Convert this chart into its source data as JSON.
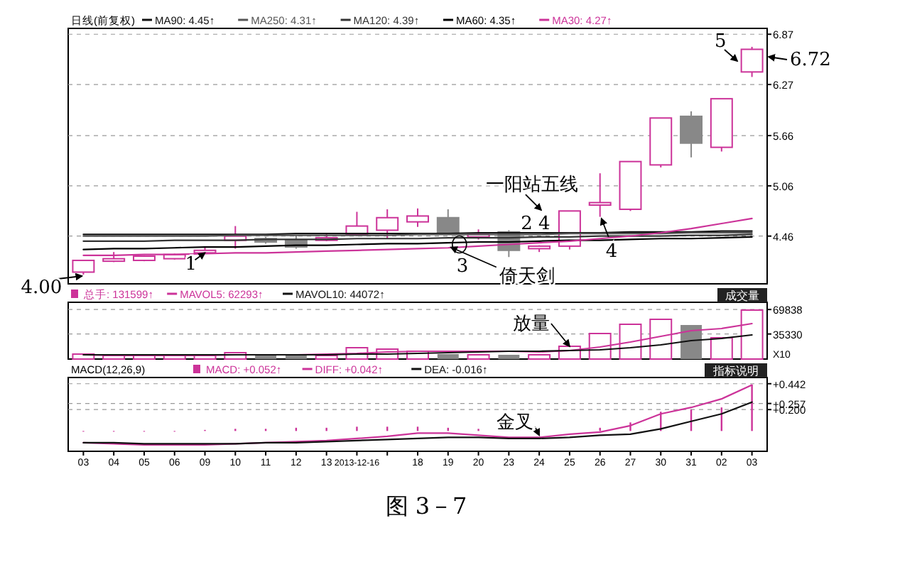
{
  "chart_data": [
    {
      "type": "candlestick",
      "legend_title": "日线(前复权)",
      "legend": "top left",
      "tick_labels": "y",
      "grid": "y",
      "categories": [
        "03",
        "04",
        "05",
        "06",
        "09",
        "10",
        "11",
        "12",
        "13",
        "2013-12-16",
        null,
        "18",
        "19",
        "20",
        "23",
        "24",
        "25",
        "26",
        "27",
        "30",
        "31",
        "02",
        "03"
      ],
      "ohlc": [
        [
          4.03,
          4.17,
          4.0,
          4.17
        ],
        [
          4.16,
          4.27,
          4.15,
          4.19
        ],
        [
          4.17,
          4.23,
          4.16,
          4.22
        ],
        [
          4.19,
          4.25,
          4.18,
          4.24
        ],
        [
          4.26,
          4.33,
          4.25,
          4.29
        ],
        [
          4.41,
          4.58,
          4.31,
          4.46
        ],
        [
          4.43,
          4.45,
          4.37,
          4.39
        ],
        [
          4.41,
          4.47,
          4.31,
          4.33
        ],
        [
          4.41,
          4.5,
          4.4,
          4.44
        ],
        [
          4.48,
          4.75,
          4.46,
          4.58
        ],
        [
          4.53,
          4.78,
          4.43,
          4.68
        ],
        [
          4.63,
          4.79,
          4.57,
          4.7
        ],
        [
          4.68,
          4.78,
          4.48,
          4.49
        ],
        [
          4.45,
          4.54,
          4.42,
          4.48
        ],
        [
          4.51,
          4.53,
          4.21,
          4.29
        ],
        [
          4.31,
          4.35,
          4.27,
          4.34
        ],
        [
          4.34,
          4.76,
          4.3,
          4.76
        ],
        [
          4.83,
          5.21,
          4.69,
          4.86
        ],
        [
          4.78,
          5.35,
          4.76,
          5.35
        ],
        [
          5.31,
          5.87,
          5.28,
          5.87
        ],
        [
          5.89,
          5.95,
          5.4,
          5.57
        ],
        [
          5.52,
          6.1,
          5.47,
          6.1
        ],
        [
          6.42,
          6.72,
          6.36,
          6.69
        ]
      ],
      "colors": [
        "#cc3399",
        "#cc3399",
        "#cc3399",
        "#cc3399",
        "#cc3399",
        "#cc3399",
        "#888888",
        "#888888",
        "#cc3399",
        "#cc3399",
        "#cc3399",
        "#cc3399",
        "#888888",
        "#cc3399",
        "#888888",
        "#cc3399",
        "#cc3399",
        "#cc3399",
        "#cc3399",
        "#cc3399",
        "#888888",
        "#cc3399",
        "#cc3399"
      ],
      "series": [
        {
          "type": "line",
          "name": "MA90: 4.45↑",
          "color": "#111111",
          "values": [
            4.48,
            4.48,
            4.48,
            4.48,
            4.48,
            4.48,
            4.48,
            4.49,
            4.49,
            4.49,
            4.49,
            4.49,
            4.49,
            4.5,
            4.5,
            4.5,
            4.5,
            4.5,
            4.51,
            4.51,
            4.51,
            4.52,
            4.52
          ]
        },
        {
          "type": "line",
          "name": "MA250: 4.31↑",
          "color": "#555555",
          "values": [
            4.46,
            4.46,
            4.46,
            4.46,
            4.46,
            4.47,
            4.47,
            4.47,
            4.47,
            4.47,
            4.47,
            4.48,
            4.48,
            4.48,
            4.48,
            4.48,
            4.49,
            4.49,
            4.49,
            4.49,
            4.5,
            4.5,
            4.5
          ]
        },
        {
          "type": "line",
          "name": "MA120: 4.39↑",
          "color": "#333333",
          "values": [
            4.4,
            4.4,
            4.4,
            4.41,
            4.41,
            4.41,
            4.42,
            4.42,
            4.42,
            4.43,
            4.43,
            4.43,
            4.44,
            4.44,
            4.44,
            4.45,
            4.45,
            4.46,
            4.46,
            4.46,
            4.47,
            4.47,
            4.48
          ]
        },
        {
          "type": "line",
          "name": "MA60: 4.35↑",
          "color": "#000000",
          "values": [
            4.3,
            4.31,
            4.31,
            4.32,
            4.33,
            4.33,
            4.34,
            4.35,
            4.35,
            4.36,
            4.37,
            4.37,
            4.38,
            4.39,
            4.39,
            4.4,
            4.41,
            4.41,
            4.42,
            4.43,
            4.43,
            4.44,
            4.45
          ]
        },
        {
          "type": "line",
          "name": "MA30: 4.27↑",
          "color": "#cc3399",
          "values": [
            4.23,
            4.23,
            4.24,
            4.24,
            4.25,
            4.26,
            4.26,
            4.27,
            4.28,
            4.29,
            4.3,
            4.31,
            4.32,
            4.34,
            4.36,
            4.38,
            4.4,
            4.43,
            4.46,
            4.5,
            4.55,
            4.61,
            4.67
          ]
        }
      ],
      "ylim": [
        3.89,
        6.94
      ],
      "yticks": [
        4.46,
        5.06,
        5.66,
        6.27,
        6.87
      ],
      "annotations": [
        {
          "text": "4.00",
          "x": "03",
          "y": 4.0
        },
        {
          "text": "1",
          "x": "09",
          "y": 4.26
        },
        {
          "text": "3",
          "x": "19",
          "y": 4.36
        },
        {
          "text": "倚天剑",
          "x": "19",
          "y": 4.36
        },
        {
          "text": "2 4",
          "x": "24",
          "y": 4.36
        },
        {
          "text": "一阳站五线",
          "x": "25",
          "y": 4.55
        },
        {
          "text": "4",
          "x": "26",
          "y": 4.72
        },
        "5",
        "6.72"
      ]
    },
    {
      "type": "bar",
      "title": "成交量",
      "legend": "top left",
      "tick_labels": "y",
      "grid": "y",
      "ylabel": "X10",
      "categories": [
        "03",
        "04",
        "05",
        "06",
        "09",
        "10",
        "11",
        "12",
        "13",
        "2013-12-16",
        null,
        "18",
        "19",
        "20",
        "23",
        "24",
        "25",
        "26",
        "27",
        "30",
        "31",
        "02",
        "03"
      ],
      "series": [
        {
          "type": "bar",
          "name": "总手: 131599↑",
          "colors": [
            "#cc3399",
            "#cc3399",
            "#cc3399",
            "#cc3399",
            "#cc3399",
            "#cc3399",
            "#888888",
            "#888888",
            "#cc3399",
            "#cc3399",
            "#cc3399",
            "#cc3399",
            "#888888",
            "#cc3399",
            "#888888",
            "#cc3399",
            "#cc3399",
            "#cc3399",
            "#cc3399",
            "#cc3399",
            "#888888",
            "#cc3399",
            "#cc3399"
          ],
          "values": [
            7000,
            5000,
            5000,
            5000,
            5000,
            9000,
            5000,
            5000,
            5000,
            16000,
            14000,
            11000,
            7000,
            6000,
            6000,
            6000,
            18000,
            36000,
            49000,
            56000,
            48000,
            30000,
            69000
          ]
        },
        {
          "type": "line",
          "name": "MAVOL5: 62293↑",
          "color": "#cc3399",
          "values": [
            6000,
            5000,
            5000,
            5000,
            5000,
            6000,
            6000,
            6000,
            7000,
            8000,
            10000,
            11000,
            11000,
            11000,
            11000,
            10000,
            12000,
            17000,
            24000,
            32000,
            40000,
            43000,
            50000
          ]
        },
        {
          "type": "line",
          "name": "MAVOL10: 44072↑",
          "color": "#111111",
          "values": [
            6000,
            6000,
            6000,
            6000,
            6000,
            6000,
            6000,
            6000,
            6000,
            7000,
            7000,
            8000,
            9000,
            10000,
            11000,
            11000,
            12000,
            13000,
            16000,
            20000,
            26000,
            29000,
            34000
          ]
        }
      ],
      "ylim": [
        0,
        80000
      ],
      "yticks": [
        35330,
        69838
      ],
      "annotations": [
        {
          "text": "放量",
          "x": "25",
          "y": 18000
        }
      ]
    },
    {
      "type": "line",
      "title": "指标说明",
      "legend": "top left",
      "legend_title": "MACD(12,26,9)",
      "grid": "y",
      "categories": [
        "03",
        "04",
        "05",
        "06",
        "09",
        "10",
        "11",
        "12",
        "13",
        "2013-12-16",
        null,
        "18",
        "19",
        "20",
        "23",
        "24",
        "25",
        "26",
        "27",
        "30",
        "31",
        "02",
        "03"
      ],
      "series": [
        {
          "type": "bar",
          "name": "MACD: +0.052↑",
          "color": "#cc3399",
          "values": [
            0.0,
            0.0,
            0.0,
            0.0,
            0.01,
            0.02,
            0.02,
            0.03,
            0.03,
            0.04,
            0.04,
            0.04,
            0.03,
            0.02,
            null,
            0.0,
            null,
            0.03,
            0.08,
            0.18,
            0.2,
            0.22,
            0.43
          ]
        },
        {
          "type": "line",
          "name": "DIFF: +0.042↑",
          "color": "#cc3399",
          "values": [
            -0.11,
            -0.12,
            -0.13,
            -0.13,
            -0.13,
            -0.12,
            -0.11,
            -0.1,
            -0.09,
            -0.07,
            -0.05,
            -0.02,
            -0.02,
            -0.04,
            -0.06,
            -0.06,
            -0.03,
            -0.01,
            0.05,
            0.16,
            0.22,
            0.3,
            0.43
          ]
        },
        {
          "type": "line",
          "name": "DEA: -0.016↑",
          "color": "#111111",
          "values": [
            -0.11,
            -0.11,
            -0.12,
            -0.12,
            -0.12,
            -0.12,
            -0.11,
            -0.11,
            -0.1,
            -0.09,
            -0.08,
            -0.07,
            -0.06,
            -0.06,
            -0.07,
            -0.07,
            -0.06,
            -0.04,
            -0.03,
            0.02,
            0.09,
            0.16,
            0.27
          ]
        }
      ],
      "ylim": [
        -0.19,
        0.5
      ],
      "yticks": [
        {
          "value": 0.2,
          "label": "+0.200"
        },
        {
          "value": 0.257,
          "label": "+0.257"
        },
        {
          "value": 0.442,
          "label": "+0.442"
        }
      ],
      "annotations": [
        {
          "text": "金叉",
          "x": "24",
          "y": -0.04
        },
        "图 3－7"
      ]
    }
  ]
}
